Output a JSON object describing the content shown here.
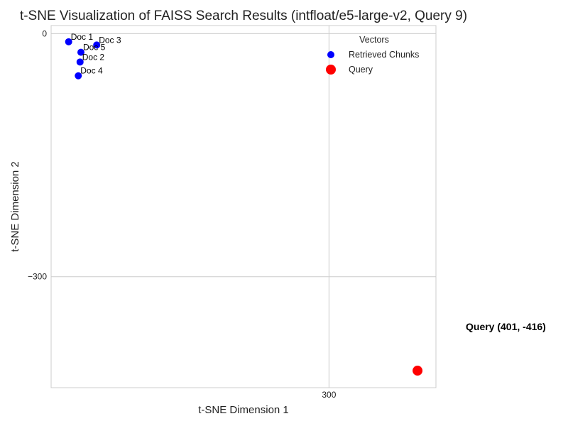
{
  "chart_data": {
    "type": "scatter",
    "title": "t-SNE Visualization of FAISS Search Results (intfloat/e5-large-v2, Query 9)",
    "xlabel": "t-SNE Dimension 1",
    "ylabel": "t-SNE Dimension 2",
    "xlim": [
      -17,
      422
    ],
    "ylim": [
      -437,
      10
    ],
    "xticks": [
      {
        "value": 300,
        "label": "300"
      }
    ],
    "yticks": [
      {
        "value": 0,
        "label": "0"
      },
      {
        "value": -300,
        "label": "−300"
      }
    ],
    "grid": true,
    "legend": {
      "title": "Vectors",
      "placement": "top-right"
    },
    "series": [
      {
        "name": "Retrieved Chunks",
        "color": "#0000ff",
        "points": [
          {
            "label": "Doc 1",
            "x": 3,
            "y": -10
          },
          {
            "label": "Doc 3",
            "x": 35,
            "y": -14
          },
          {
            "label": "Doc 5",
            "x": 17,
            "y": -23
          },
          {
            "label": "Doc 2",
            "x": 16,
            "y": -35
          },
          {
            "label": "Doc 4",
            "x": 14,
            "y": -52
          }
        ]
      },
      {
        "name": "Query",
        "color": "#ff0000",
        "points": [
          {
            "x": 401,
            "y": -416
          }
        ]
      }
    ],
    "annotation": {
      "text": "Query (401, -416)"
    }
  }
}
